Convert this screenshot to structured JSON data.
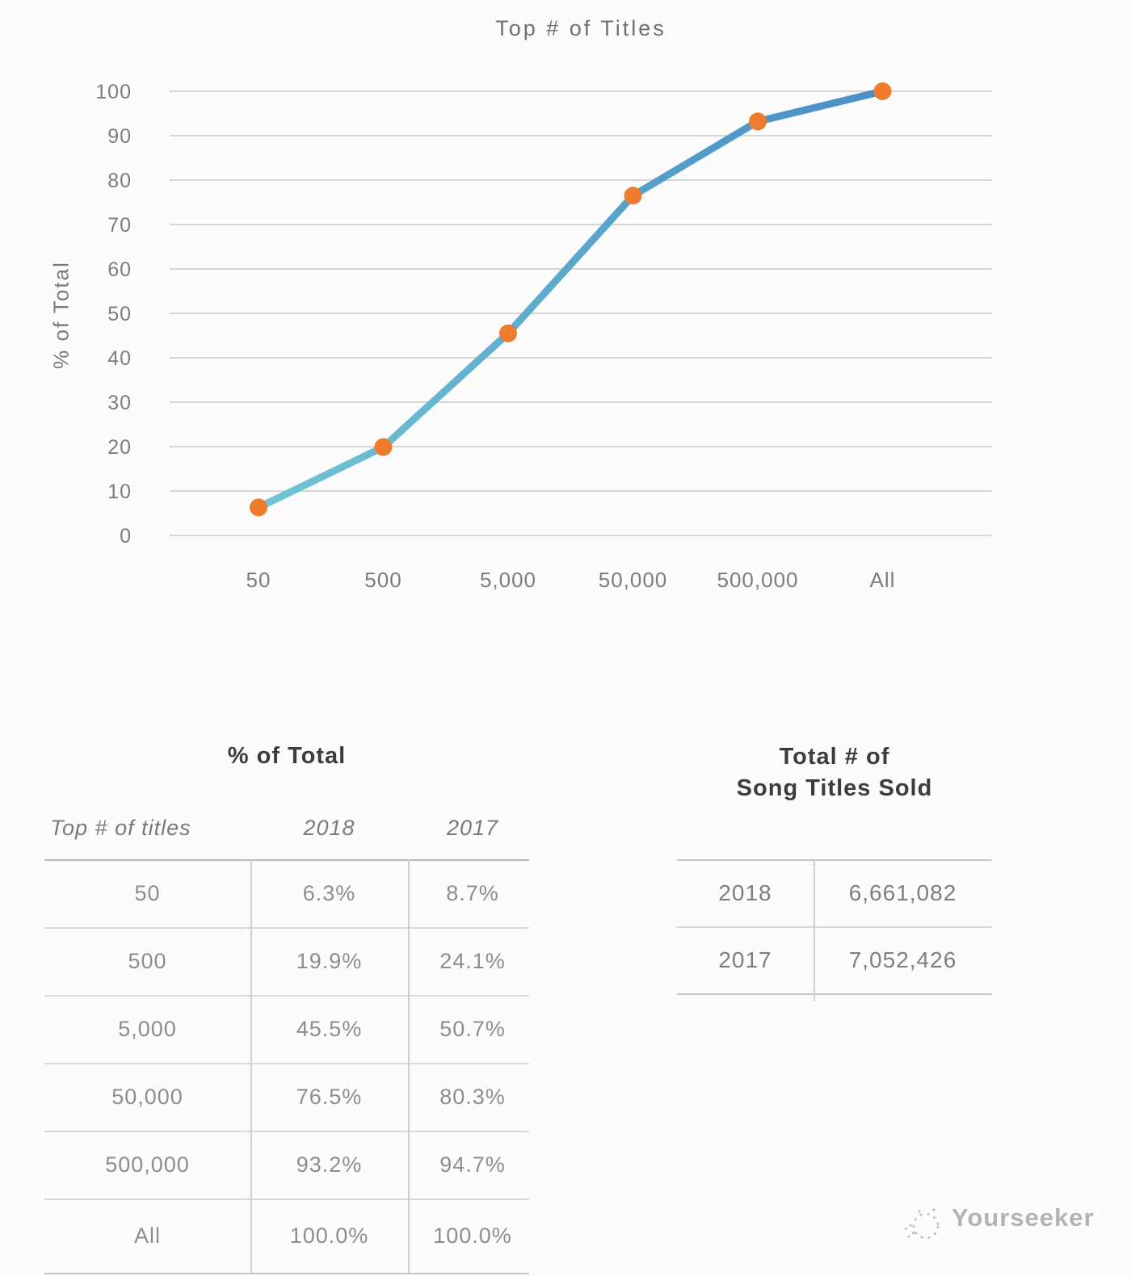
{
  "colors": {
    "line_gradient_start": "#6fc4d6",
    "line_gradient_end": "#4a90c5",
    "marker": "#ee7b2e",
    "grid": "#d6d6d6",
    "axis_text": "#7d7d7d",
    "title_text": "#6f6f6f",
    "table_title_text": "#3c3c3c",
    "cell_text": "#8d8d8d",
    "background": "#fcfcfc"
  },
  "chart_data": {
    "type": "line",
    "title": "Top # of Titles",
    "xlabel": "",
    "ylabel": "% of Total",
    "categories": [
      "50",
      "500",
      "5,000",
      "50,000",
      "500,000",
      "All"
    ],
    "series": [
      {
        "name": "2018",
        "values": [
          6.3,
          19.9,
          45.5,
          76.5,
          93.2,
          100.0
        ]
      }
    ],
    "yticks": [
      0,
      10,
      20,
      30,
      40,
      50,
      60,
      70,
      80,
      90,
      100
    ],
    "ylim": [
      0,
      100
    ],
    "grid": true,
    "legend": false,
    "marker": "circle"
  },
  "percent_table": {
    "title": "% of Total",
    "columns": [
      "Top # of titles",
      "2018",
      "2017"
    ],
    "rows": [
      [
        "50",
        "6.3%",
        "8.7%"
      ],
      [
        "500",
        "19.9%",
        "24.1%"
      ],
      [
        "5,000",
        "45.5%",
        "50.7%"
      ],
      [
        "50,000",
        "76.5%",
        "80.3%"
      ],
      [
        "500,000",
        "93.2%",
        "94.7%"
      ],
      [
        "All",
        "100.0%",
        "100.0%"
      ]
    ]
  },
  "totals_table": {
    "title_line1": "Total # of",
    "title_line2": "Song Titles Sold",
    "rows": [
      [
        "2018",
        "6,661,082"
      ],
      [
        "2017",
        "7,052,426"
      ]
    ]
  },
  "watermark": {
    "text": "Yourseeker"
  }
}
